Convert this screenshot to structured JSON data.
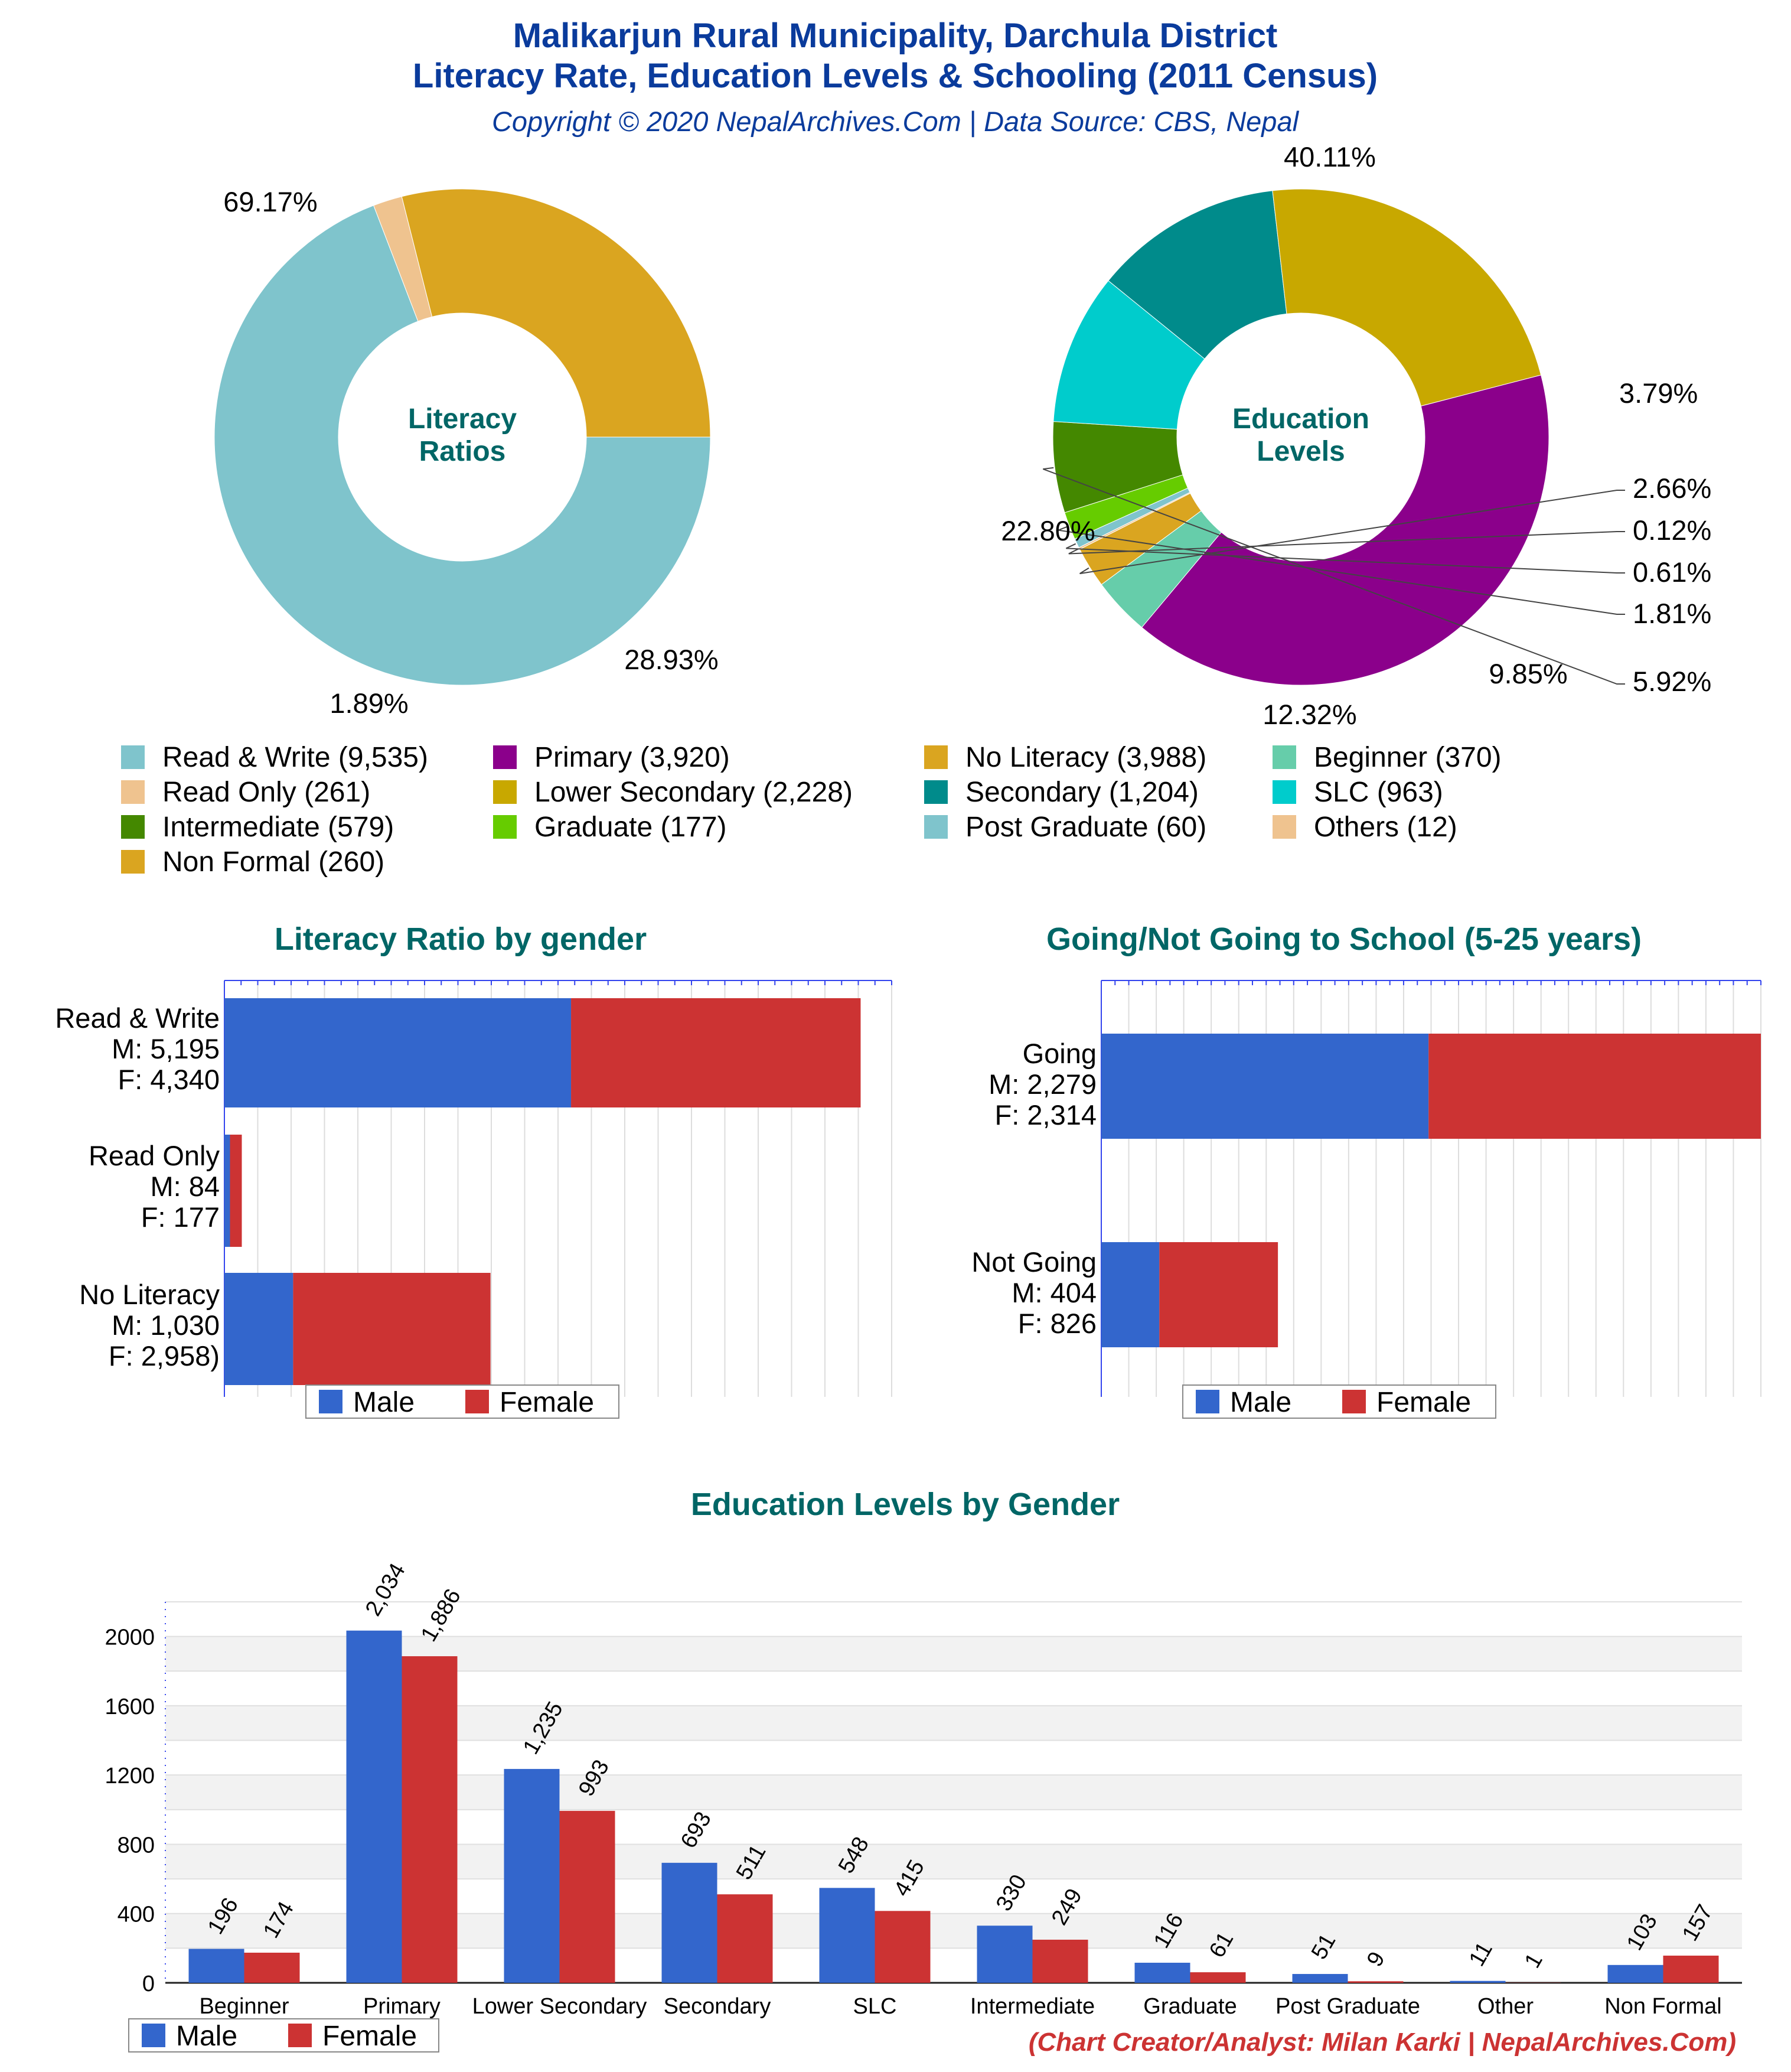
{
  "header": {
    "title_line1": "Malikarjun Rural Municipality, Darchula District",
    "title_line2": "Literacy Rate, Education Levels & Schooling (2011 Census)",
    "subtitle": "Copyright © 2020 NepalArchives.Com | Data Source: CBS, Nepal"
  },
  "footer": {
    "credit": "(Chart Creator/Analyst: Milan Karki | NepalArchives.Com)"
  },
  "colors": {
    "title": "#0a3b9c",
    "teal_heading": "#006666",
    "male": "#3366cc",
    "female": "#cc3333",
    "credit": "#cc3333"
  },
  "legend_labels": {
    "male": "Male",
    "female": "Female"
  },
  "chart_data": [
    {
      "id": "literacy_ratios",
      "type": "pie",
      "center_label": [
        "Literacy",
        "Ratios"
      ],
      "slices": [
        {
          "label": "Read & Write",
          "legend": "Read & Write (9,535)",
          "value": 9535,
          "pct_label": "69.17%",
          "color": "#7fc4cc"
        },
        {
          "label": "Read Only",
          "legend": "Read Only (261)",
          "value": 261,
          "pct_label": "1.89%",
          "color": "#efc38f"
        },
        {
          "label": "No Literacy",
          "legend": "No Literacy (3,988)",
          "value": 3988,
          "pct_label": "28.93%",
          "color": "#daa520"
        }
      ]
    },
    {
      "id": "education_levels",
      "type": "pie",
      "center_label": [
        "Education",
        "Levels"
      ],
      "slices": [
        {
          "label": "Primary",
          "legend": "Primary (3,920)",
          "value": 3920,
          "pct_label": "40.11%",
          "color": "#8b008b"
        },
        {
          "label": "Beginner",
          "legend": "Beginner (370)",
          "value": 370,
          "pct_label": "3.79%",
          "color": "#66cdaa"
        },
        {
          "label": "Non Formal",
          "legend": "Non Formal (260)",
          "value": 260,
          "pct_label": "2.66%",
          "color": "#daa520"
        },
        {
          "label": "Others",
          "legend": "Others (12)",
          "value": 12,
          "pct_label": "0.12%",
          "color": "#efc38f"
        },
        {
          "label": "Post Graduate",
          "legend": "Post Graduate (60)",
          "value": 60,
          "pct_label": "0.61%",
          "color": "#7fc4cc"
        },
        {
          "label": "Graduate",
          "legend": "Graduate (177)",
          "value": 177,
          "pct_label": "1.81%",
          "color": "#66cc00"
        },
        {
          "label": "Intermediate",
          "legend": "Intermediate (579)",
          "value": 579,
          "pct_label": "5.92%",
          "color": "#448800"
        },
        {
          "label": "SLC",
          "legend": "SLC (963)",
          "value": 963,
          "pct_label": "9.85%",
          "color": "#00cccc"
        },
        {
          "label": "Secondary",
          "legend": "Secondary (1,204)",
          "value": 1204,
          "pct_label": "12.32%",
          "color": "#008b8b"
        },
        {
          "label": "Lower Secondary",
          "legend": "Lower Secondary (2,228)",
          "value": 2228,
          "pct_label": "22.80%",
          "color": "#c8a800"
        }
      ]
    },
    {
      "id": "literacy_by_gender",
      "type": "bar",
      "orientation": "horizontal",
      "stacked": true,
      "title": "Literacy Ratio by gender",
      "categories": [
        "Read & Write",
        "Read Only",
        "No Literacy"
      ],
      "category_labels": [
        [
          "Read & Write",
          "M: 5,195",
          "F: 4,340"
        ],
        [
          "Read Only",
          "M: 84",
          "F: 177"
        ],
        [
          "No Literacy",
          "M: 1,030",
          "F: 2,958)"
        ]
      ],
      "series": [
        {
          "name": "Male",
          "values": [
            5195,
            84,
            1030
          ]
        },
        {
          "name": "Female",
          "values": [
            4340,
            177,
            2958
          ]
        }
      ],
      "xlim": [
        0,
        10000
      ],
      "legend": "bottom"
    },
    {
      "id": "school_by_gender",
      "type": "bar",
      "orientation": "horizontal",
      "stacked": true,
      "title": "Going/Not Going to School (5-25 years)",
      "categories": [
        "Going",
        "Not Going"
      ],
      "category_labels": [
        [
          "Going",
          "M: 2,279",
          "F: 2,314"
        ],
        [
          "Not Going",
          "M: 404",
          "F: 826"
        ]
      ],
      "series": [
        {
          "name": "Male",
          "values": [
            2279,
            404
          ]
        },
        {
          "name": "Female",
          "values": [
            2314,
            826
          ]
        }
      ],
      "xlim": [
        0,
        4593
      ],
      "legend": "bottom"
    },
    {
      "id": "education_by_gender",
      "type": "bar",
      "orientation": "vertical",
      "title": "Education Levels by Gender",
      "categories": [
        "Beginner",
        "Primary",
        "Lower Secondary",
        "Secondary",
        "SLC",
        "Intermediate",
        "Graduate",
        "Post Graduate",
        "Other",
        "Non Formal"
      ],
      "series": [
        {
          "name": "Male",
          "values": [
            196,
            2034,
            1235,
            693,
            548,
            330,
            116,
            51,
            11,
            103
          ],
          "value_labels": [
            "196",
            "2,034",
            "1,235",
            "693",
            "548",
            "330",
            "116",
            "51",
            "11",
            "103"
          ]
        },
        {
          "name": "Female",
          "values": [
            174,
            1886,
            993,
            511,
            415,
            249,
            61,
            9,
            1,
            157
          ],
          "value_labels": [
            "174",
            "1,886",
            "993",
            "511",
            "415",
            "249",
            "61",
            "9",
            "1",
            "157"
          ]
        }
      ],
      "yticks": [
        "0",
        "400",
        "800",
        "1200",
        "1600",
        "2000"
      ],
      "ylim": [
        0,
        2200
      ],
      "grid": true,
      "legend": "bottom-left"
    }
  ]
}
